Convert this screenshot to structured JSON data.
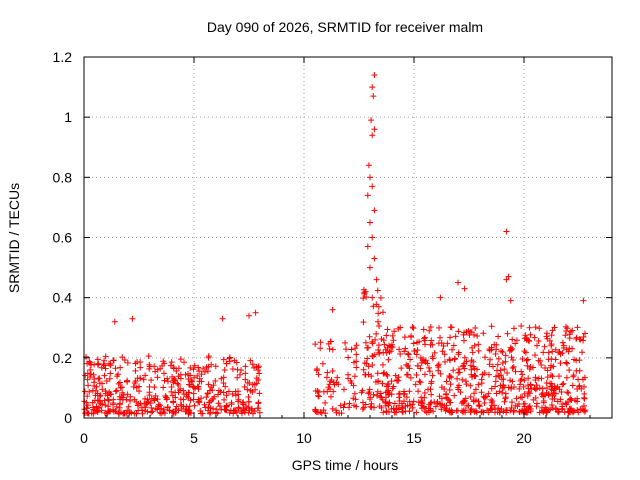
{
  "chart_data": {
    "type": "scatter",
    "title": "Day 090 of 2026, SRMTID for receiver malm",
    "xlabel": "GPS time / hours",
    "ylabel": "SRMTID / TECUs",
    "xlim": [
      0,
      24
    ],
    "ylim": [
      0,
      1.2
    ],
    "xticks": [
      0,
      5,
      10,
      15,
      20
    ],
    "xtick_labels": [
      "0",
      "5",
      "10",
      "15",
      "20"
    ],
    "yticks": [
      0,
      0.2,
      0.4,
      0.6,
      0.8,
      1,
      1.2
    ],
    "ytick_labels": [
      "0",
      "0.2",
      "0.4",
      "0.6",
      "0.8",
      "1",
      "1.2"
    ],
    "grid": true,
    "marker": "plus",
    "series": [
      {
        "name": "SRMTID",
        "color": "#ff0000",
        "segments": [
          {
            "x_start": 0.0,
            "x_end": 8.0,
            "base": 0.07,
            "spread": 0.12,
            "density": 60
          },
          {
            "x_start": 10.5,
            "x_end": 12.4,
            "base": 0.08,
            "spread": 0.15,
            "density": 40
          },
          {
            "x_start": 12.6,
            "x_end": 13.6,
            "base": 0.15,
            "spread": 0.25,
            "density": 70
          },
          {
            "x_start": 13.6,
            "x_end": 22.8,
            "base": 0.09,
            "spread": 0.18,
            "density": 75
          }
        ],
        "points": [
          {
            "x": 13.2,
            "y": 1.14
          },
          {
            "x": 13.1,
            "y": 1.1
          },
          {
            "x": 13.15,
            "y": 1.07
          },
          {
            "x": 13.05,
            "y": 0.99
          },
          {
            "x": 13.2,
            "y": 0.96
          },
          {
            "x": 13.1,
            "y": 0.94
          },
          {
            "x": 12.95,
            "y": 0.84
          },
          {
            "x": 13.0,
            "y": 0.8
          },
          {
            "x": 13.1,
            "y": 0.77
          },
          {
            "x": 12.9,
            "y": 0.74
          },
          {
            "x": 13.2,
            "y": 0.69
          },
          {
            "x": 13.0,
            "y": 0.65
          },
          {
            "x": 13.1,
            "y": 0.6
          },
          {
            "x": 12.9,
            "y": 0.57
          },
          {
            "x": 13.2,
            "y": 0.53
          },
          {
            "x": 13.0,
            "y": 0.5
          },
          {
            "x": 13.3,
            "y": 0.46
          },
          {
            "x": 12.8,
            "y": 0.42
          },
          {
            "x": 13.1,
            "y": 0.4
          },
          {
            "x": 13.4,
            "y": 0.37
          },
          {
            "x": 19.2,
            "y": 0.62
          },
          {
            "x": 19.3,
            "y": 0.47
          },
          {
            "x": 19.2,
            "y": 0.46
          },
          {
            "x": 19.4,
            "y": 0.39
          },
          {
            "x": 17.0,
            "y": 0.45
          },
          {
            "x": 17.3,
            "y": 0.43
          },
          {
            "x": 16.2,
            "y": 0.4
          },
          {
            "x": 22.7,
            "y": 0.39
          },
          {
            "x": 7.8,
            "y": 0.35
          },
          {
            "x": 7.5,
            "y": 0.34
          },
          {
            "x": 11.3,
            "y": 0.36
          },
          {
            "x": 1.4,
            "y": 0.32
          },
          {
            "x": 2.2,
            "y": 0.33
          },
          {
            "x": 6.3,
            "y": 0.33
          }
        ]
      }
    ]
  }
}
